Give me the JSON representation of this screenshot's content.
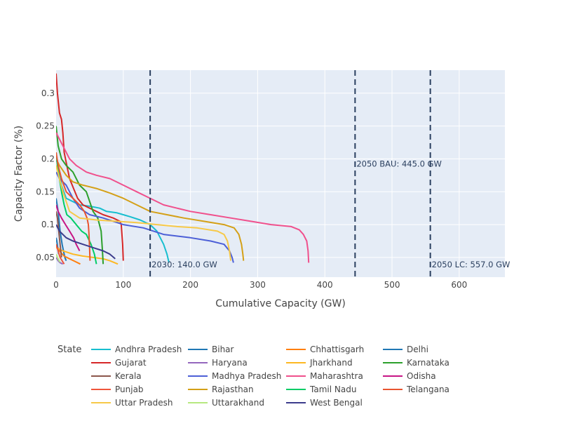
{
  "chart_data": {
    "type": "line",
    "xlabel": "Cumulative Capacity (GW)",
    "ylabel": "Capacity Factor (%)",
    "xlim": [
      0,
      668
    ],
    "ylim": [
      0.02,
      0.335
    ],
    "x_ticks": [
      0,
      100,
      200,
      300,
      400,
      500,
      600
    ],
    "y_ticks": [
      0.05,
      0.1,
      0.15,
      0.2,
      0.25,
      0.3
    ],
    "y_tick_labels": [
      "0.05",
      "0.1",
      "0.15",
      "0.2",
      "0.25",
      "0.3"
    ],
    "grid": true,
    "legend_title": "State",
    "legend_position": "bottom",
    "vlines": [
      {
        "x": 140,
        "label": "2030: 140.0 GW",
        "label_y": 0.032
      },
      {
        "x": 445,
        "label": "2050 BAU: 445.0 GW",
        "label_y": 0.185
      },
      {
        "x": 557,
        "label": "2050 LC: 557.0 GW",
        "label_y": 0.032
      }
    ],
    "series": [
      {
        "name": "Andhra Pradesh",
        "color": "#17becf",
        "points": [
          [
            0,
            0.2
          ],
          [
            3,
            0.19
          ],
          [
            8,
            0.16
          ],
          [
            15,
            0.14
          ],
          [
            25,
            0.135
          ],
          [
            35,
            0.13
          ],
          [
            50,
            0.128
          ],
          [
            65,
            0.125
          ],
          [
            75,
            0.12
          ],
          [
            90,
            0.118
          ],
          [
            100,
            0.115
          ],
          [
            110,
            0.112
          ],
          [
            125,
            0.107
          ],
          [
            140,
            0.1
          ],
          [
            150,
            0.09
          ],
          [
            160,
            0.07
          ],
          [
            165,
            0.055
          ],
          [
            168,
            0.042
          ]
        ]
      },
      {
        "name": "Bihar",
        "color": "#1f77b4",
        "points": [
          [
            0,
            0.14
          ],
          [
            3,
            0.12
          ],
          [
            6,
            0.09
          ],
          [
            9,
            0.07
          ],
          [
            11,
            0.06
          ],
          [
            13,
            0.05
          ],
          [
            15,
            0.045
          ]
        ]
      },
      {
        "name": "Chhattisgarh",
        "color": "#ff7f0e",
        "points": [
          [
            0,
            0.07
          ],
          [
            5,
            0.06
          ],
          [
            12,
            0.052
          ],
          [
            20,
            0.048
          ],
          [
            28,
            0.044
          ],
          [
            36,
            0.04
          ]
        ]
      },
      {
        "name": "Delhi",
        "color": "#1f77b4",
        "points": [
          [
            0,
            0.08
          ],
          [
            1,
            0.075
          ],
          [
            2,
            0.068
          ],
          [
            3,
            0.06
          ],
          [
            4,
            0.055
          ]
        ]
      },
      {
        "name": "Gujarat",
        "color": "#d62728",
        "points": [
          [
            0,
            0.33
          ],
          [
            2,
            0.3
          ],
          [
            5,
            0.27
          ],
          [
            8,
            0.26
          ],
          [
            10,
            0.24
          ],
          [
            12,
            0.21
          ],
          [
            16,
            0.19
          ],
          [
            20,
            0.17
          ],
          [
            26,
            0.155
          ],
          [
            32,
            0.14
          ],
          [
            40,
            0.13
          ],
          [
            50,
            0.125
          ],
          [
            60,
            0.12
          ],
          [
            70,
            0.115
          ],
          [
            85,
            0.11
          ],
          [
            95,
            0.105
          ],
          [
            97,
            0.1
          ],
          [
            99,
            0.07
          ],
          [
            100,
            0.045
          ]
        ]
      },
      {
        "name": "Haryana",
        "color": "#9467bd",
        "points": [
          [
            0,
            0.05
          ],
          [
            3,
            0.045
          ],
          [
            6,
            0.042
          ],
          [
            10,
            0.04
          ]
        ]
      },
      {
        "name": "Jharkhand",
        "color": "#fdb822",
        "points": [
          [
            0,
            0.065
          ],
          [
            10,
            0.06
          ],
          [
            25,
            0.055
          ],
          [
            40,
            0.052
          ],
          [
            55,
            0.05
          ],
          [
            70,
            0.048
          ],
          [
            80,
            0.045
          ],
          [
            92,
            0.04
          ]
        ]
      },
      {
        "name": "Karnataka",
        "color": "#2ca02c",
        "points": [
          [
            0,
            0.25
          ],
          [
            3,
            0.22
          ],
          [
            8,
            0.2
          ],
          [
            15,
            0.19
          ],
          [
            25,
            0.18
          ],
          [
            35,
            0.16
          ],
          [
            45,
            0.15
          ],
          [
            55,
            0.12
          ],
          [
            62,
            0.11
          ],
          [
            67,
            0.09
          ],
          [
            69,
            0.06
          ],
          [
            70,
            0.04
          ]
        ]
      },
      {
        "name": "Kerala",
        "color": "#8c564b",
        "points": [
          [
            0,
            0.12
          ],
          [
            2,
            0.11
          ],
          [
            4,
            0.09
          ],
          [
            6,
            0.07
          ],
          [
            8,
            0.05
          ]
        ]
      },
      {
        "name": "Madhya Pradesh",
        "color": "#4c5fd7",
        "points": [
          [
            0,
            0.18
          ],
          [
            5,
            0.17
          ],
          [
            15,
            0.16
          ],
          [
            25,
            0.14
          ],
          [
            35,
            0.125
          ],
          [
            50,
            0.115
          ],
          [
            70,
            0.11
          ],
          [
            100,
            0.1
          ],
          [
            130,
            0.095
          ],
          [
            160,
            0.085
          ],
          [
            200,
            0.08
          ],
          [
            230,
            0.075
          ],
          [
            250,
            0.07
          ],
          [
            258,
            0.06
          ],
          [
            262,
            0.05
          ],
          [
            264,
            0.042
          ]
        ]
      },
      {
        "name": "Maharashtra",
        "color": "#f0508c",
        "points": [
          [
            0,
            0.24
          ],
          [
            10,
            0.22
          ],
          [
            20,
            0.2
          ],
          [
            30,
            0.19
          ],
          [
            45,
            0.18
          ],
          [
            60,
            0.175
          ],
          [
            80,
            0.17
          ],
          [
            100,
            0.16
          ],
          [
            120,
            0.15
          ],
          [
            140,
            0.14
          ],
          [
            160,
            0.13
          ],
          [
            180,
            0.125
          ],
          [
            200,
            0.12
          ],
          [
            230,
            0.115
          ],
          [
            260,
            0.11
          ],
          [
            290,
            0.105
          ],
          [
            320,
            0.1
          ],
          [
            350,
            0.097
          ],
          [
            362,
            0.092
          ],
          [
            368,
            0.085
          ],
          [
            373,
            0.075
          ],
          [
            375,
            0.06
          ],
          [
            376,
            0.042
          ]
        ]
      },
      {
        "name": "Odisha",
        "color": "#c71585",
        "points": [
          [
            0,
            0.13
          ],
          [
            3,
            0.12
          ],
          [
            8,
            0.11
          ],
          [
            14,
            0.1
          ],
          [
            20,
            0.09
          ],
          [
            26,
            0.08
          ],
          [
            30,
            0.07
          ],
          [
            35,
            0.06
          ]
        ]
      },
      {
        "name": "Punjab",
        "color": "#ef553b",
        "points": [
          [
            0,
            0.07
          ],
          [
            3,
            0.06
          ],
          [
            6,
            0.05
          ],
          [
            9,
            0.045
          ],
          [
            12,
            0.04
          ]
        ]
      },
      {
        "name": "Rajasthan",
        "color": "#d4a017",
        "points": [
          [
            0,
            0.2
          ],
          [
            5,
            0.19
          ],
          [
            15,
            0.175
          ],
          [
            25,
            0.165
          ],
          [
            40,
            0.16
          ],
          [
            60,
            0.155
          ],
          [
            80,
            0.148
          ],
          [
            100,
            0.14
          ],
          [
            120,
            0.13
          ],
          [
            140,
            0.12
          ],
          [
            165,
            0.115
          ],
          [
            190,
            0.11
          ],
          [
            220,
            0.105
          ],
          [
            250,
            0.1
          ],
          [
            265,
            0.095
          ],
          [
            272,
            0.085
          ],
          [
            276,
            0.07
          ],
          [
            278,
            0.055
          ],
          [
            279,
            0.045
          ]
        ]
      },
      {
        "name": "Tamil Nadu",
        "color": "#00cc66",
        "points": [
          [
            0,
            0.21
          ],
          [
            2,
            0.19
          ],
          [
            5,
            0.17
          ],
          [
            8,
            0.15
          ],
          [
            12,
            0.13
          ],
          [
            16,
            0.115
          ],
          [
            22,
            0.11
          ],
          [
            30,
            0.1
          ],
          [
            38,
            0.09
          ],
          [
            45,
            0.085
          ],
          [
            52,
            0.07
          ],
          [
            57,
            0.055
          ],
          [
            60,
            0.04
          ]
        ]
      },
      {
        "name": "Telangana",
        "color": "#e8542f",
        "points": [
          [
            0,
            0.21
          ],
          [
            3,
            0.19
          ],
          [
            8,
            0.17
          ],
          [
            15,
            0.15
          ],
          [
            25,
            0.14
          ],
          [
            35,
            0.13
          ],
          [
            42,
            0.12
          ],
          [
            46,
            0.11
          ],
          [
            48,
            0.1
          ],
          [
            49,
            0.085
          ],
          [
            50,
            0.06
          ],
          [
            50.5,
            0.045
          ]
        ]
      },
      {
        "name": "Uttar Pradesh",
        "color": "#f7c948",
        "points": [
          [
            0,
            0.19
          ],
          [
            10,
            0.15
          ],
          [
            20,
            0.12
          ],
          [
            35,
            0.11
          ],
          [
            60,
            0.107
          ],
          [
            90,
            0.105
          ],
          [
            120,
            0.103
          ],
          [
            150,
            0.1
          ],
          [
            180,
            0.097
          ],
          [
            210,
            0.095
          ],
          [
            240,
            0.09
          ],
          [
            250,
            0.085
          ],
          [
            255,
            0.075
          ],
          [
            258,
            0.06
          ],
          [
            260,
            0.045
          ]
        ]
      },
      {
        "name": "Uttarakhand",
        "color": "#b6e880",
        "points": [
          [
            0,
            0.055
          ],
          [
            2,
            0.05
          ],
          [
            4,
            0.046
          ],
          [
            6,
            0.043
          ]
        ]
      },
      {
        "name": "West Bengal",
        "color": "#3c3c8c",
        "points": [
          [
            0,
            0.1
          ],
          [
            5,
            0.09
          ],
          [
            15,
            0.08
          ],
          [
            25,
            0.075
          ],
          [
            40,
            0.07
          ],
          [
            55,
            0.065
          ],
          [
            70,
            0.06
          ],
          [
            80,
            0.055
          ],
          [
            88,
            0.048
          ]
        ]
      }
    ]
  }
}
